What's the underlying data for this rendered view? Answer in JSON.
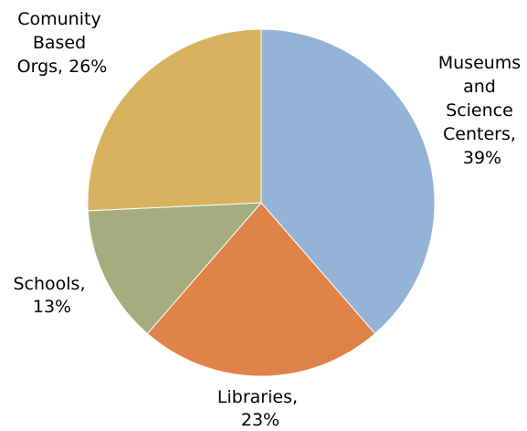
{
  "chart_data": {
    "type": "pie",
    "start_angle_deg": 0,
    "direction": "clockwise",
    "slices": [
      {
        "label": "Museums and Science Centers, 39%",
        "label_lines": [
          "Museums",
          "and",
          "Science",
          "Centers,",
          "39%"
        ],
        "value": 39,
        "color": "#95B3D7"
      },
      {
        "label": "Libraries, 23%",
        "label_lines": [
          "Libraries,",
          "23%"
        ],
        "value": 23,
        "color": "#DF8247"
      },
      {
        "label": "Schools, 13%",
        "label_lines": [
          "Schools,",
          "13%"
        ],
        "value": 13,
        "color": "#A5AD7F"
      },
      {
        "label": "Comunity Based Orgs, 26%",
        "label_lines": [
          "Comunity",
          "Based",
          "Orgs, 26%"
        ],
        "value": 26,
        "color": "#D9B25F"
      }
    ]
  }
}
